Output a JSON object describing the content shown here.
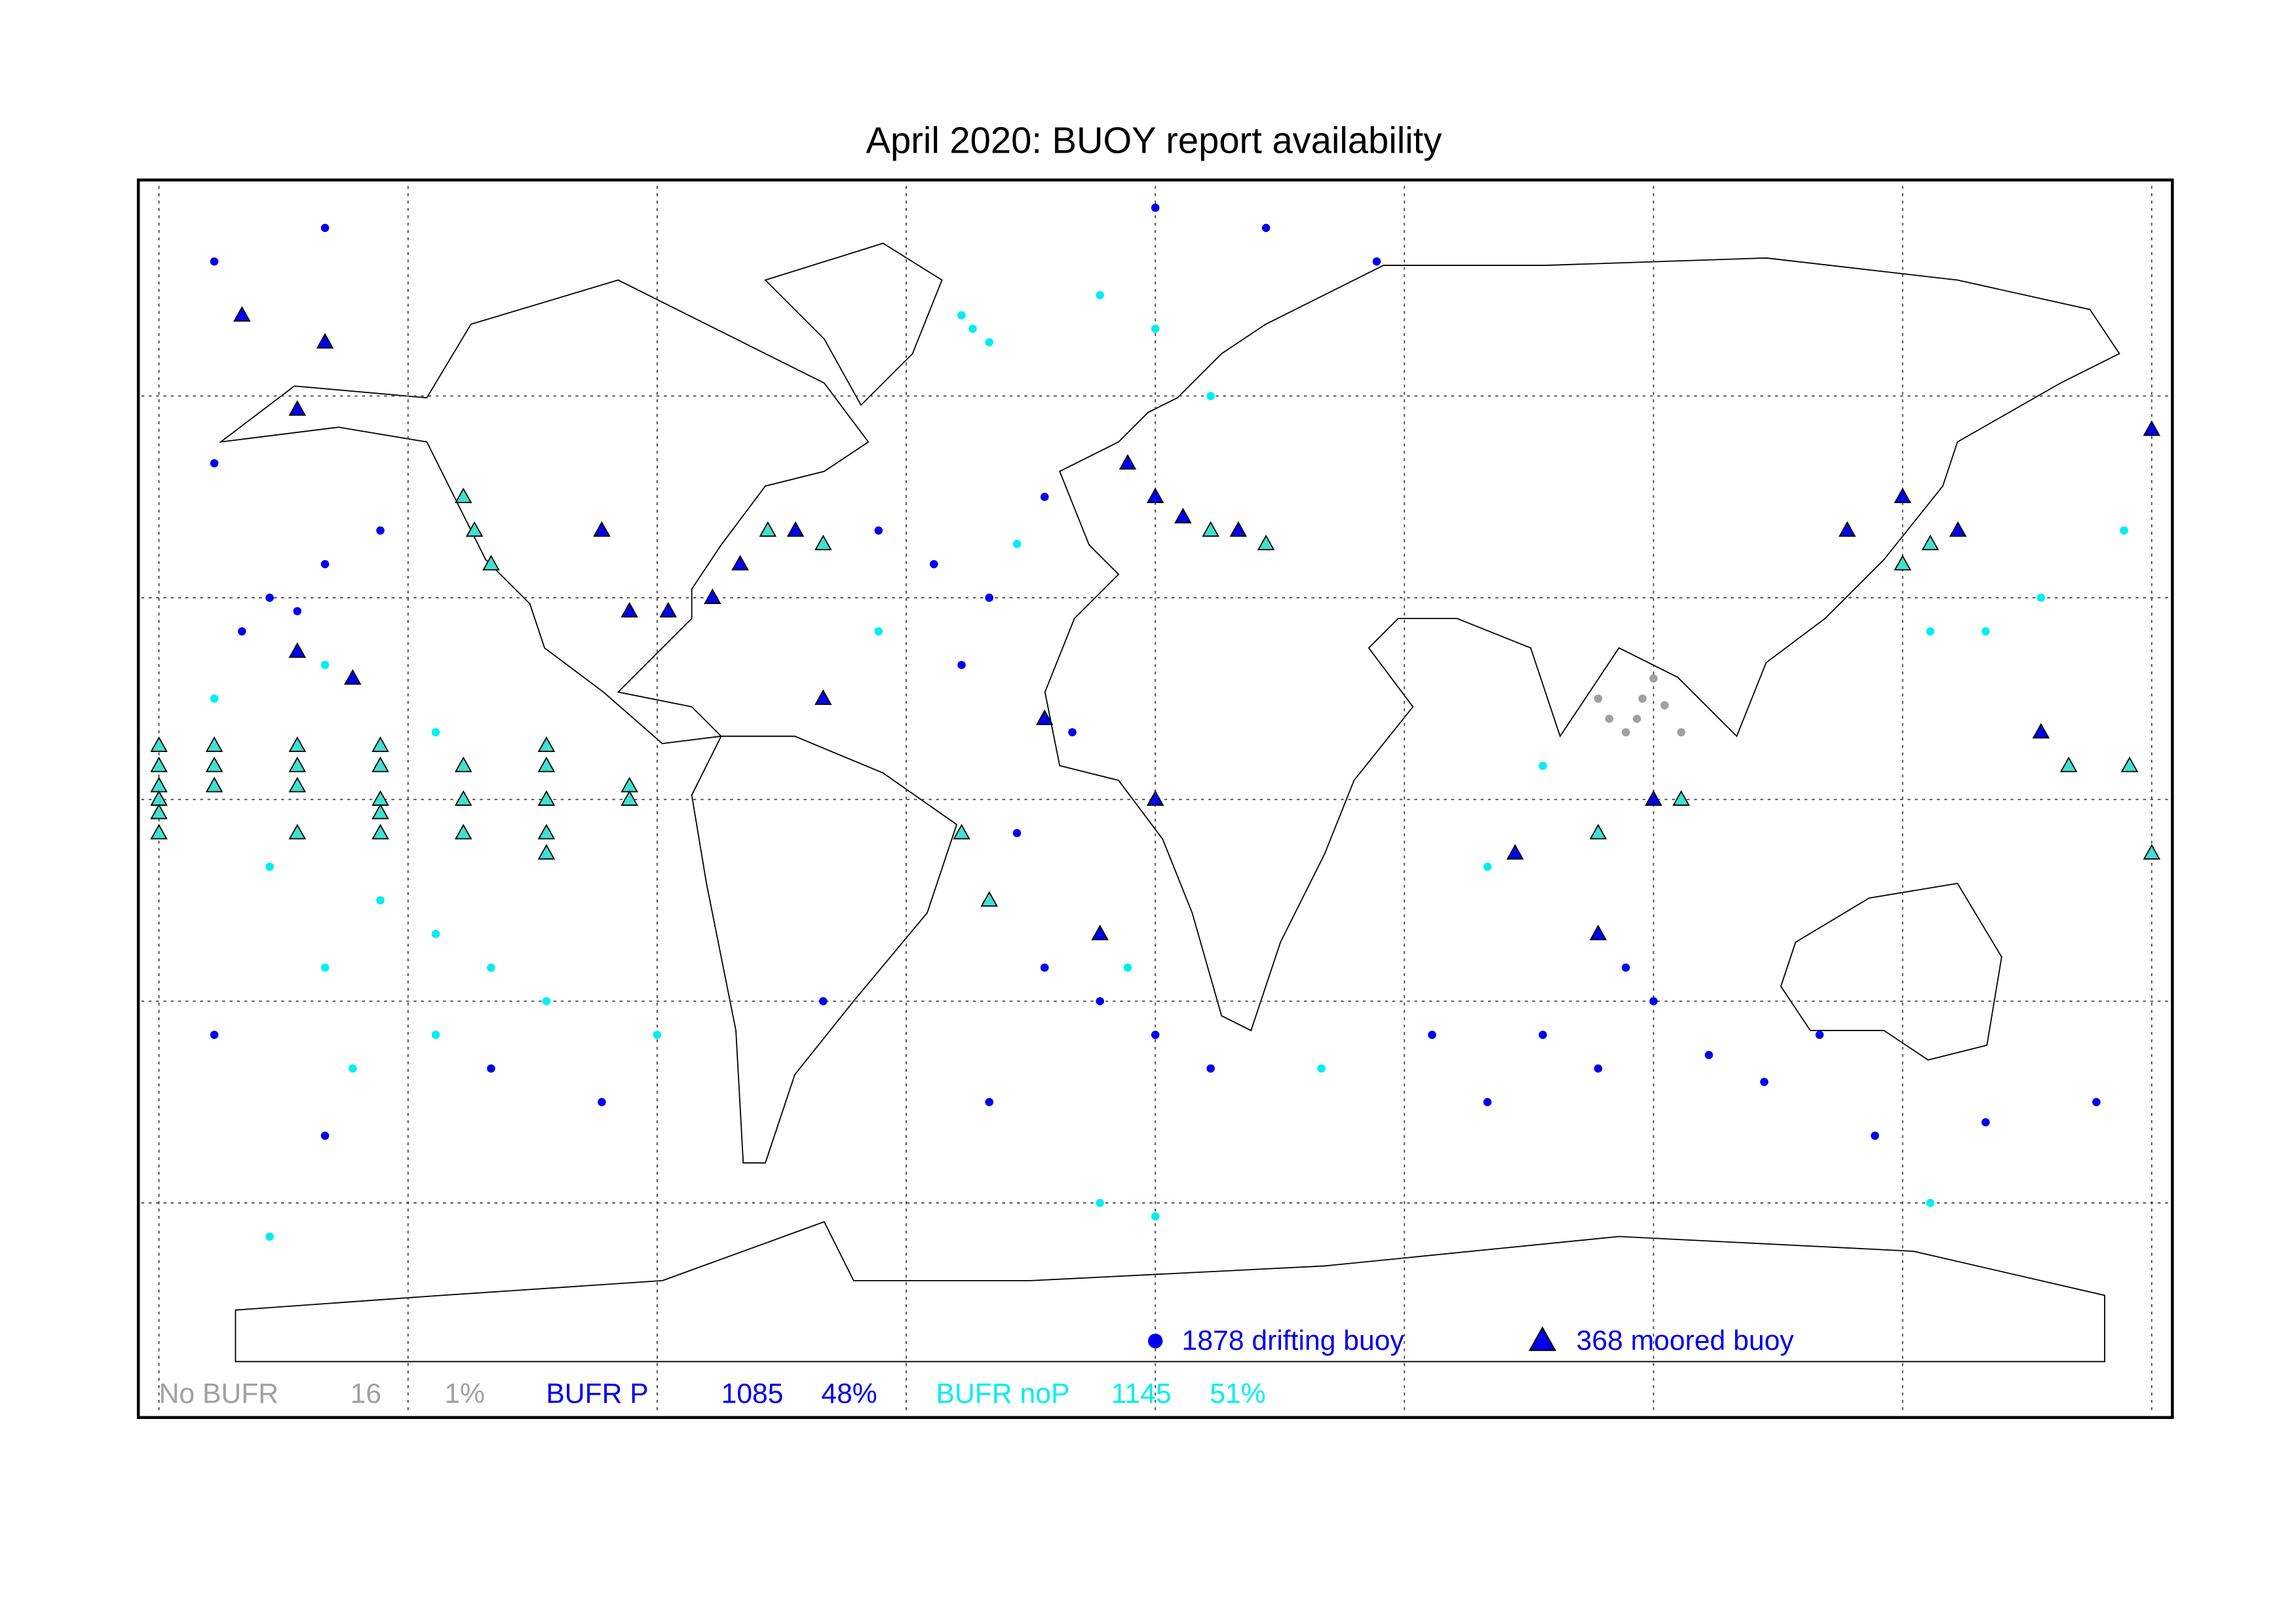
{
  "map": {
    "title": "April 2020: BUOY report availability",
    "lon_grid": [
      -180,
      -135,
      -90,
      -45,
      0,
      45,
      90,
      135,
      180
    ],
    "lat_grid": [
      -60,
      -30,
      0,
      30,
      60
    ],
    "series": [
      {
        "color": "#0000ee",
        "marker": "circle",
        "lon": [
          -160,
          -155,
          -150,
          -165,
          -140,
          -170,
          -40,
          -30,
          -50,
          -20,
          -35,
          -15,
          -20,
          -10,
          0,
          10,
          -30,
          70,
          80,
          90,
          100,
          60,
          110,
          50,
          85,
          -120,
          -100,
          -150,
          170,
          150,
          -170,
          -170,
          -150,
          20,
          40,
          0,
          -25,
          120,
          130,
          -60
        ],
        "lat": [
          30,
          28,
          35,
          25,
          40,
          50,
          35,
          30,
          40,
          45,
          20,
          10,
          -25,
          -30,
          -35,
          -40,
          -45,
          -35,
          -40,
          -30,
          -38,
          -45,
          -42,
          -35,
          -25,
          -40,
          -45,
          -50,
          -45,
          -48,
          -35,
          80,
          85,
          85,
          80,
          88,
          -5,
          -35,
          -50,
          -30
        ]
      },
      {
        "color": "#00eeee",
        "marker": "circle",
        "lon": [
          -140,
          -130,
          -150,
          -160,
          -120,
          -110,
          -90,
          -170,
          -150,
          -130,
          -10,
          -35,
          -33,
          -30,
          0,
          10,
          -50,
          -25,
          -5,
          30,
          60,
          70,
          150,
          160,
          175,
          140,
          -10,
          0,
          -160,
          140,
          -130,
          -145
        ],
        "lat": [
          -15,
          -20,
          -25,
          -10,
          -25,
          -30,
          -35,
          15,
          20,
          10,
          75,
          72,
          70,
          68,
          70,
          60,
          25,
          38,
          -25,
          -40,
          -10,
          5,
          25,
          30,
          40,
          -60,
          -60,
          -62,
          -65,
          25,
          -35,
          -40
        ]
      },
      {
        "color": "#a0a0a0",
        "marker": "circle",
        "lon": [
          80,
          82,
          85,
          88,
          92,
          95,
          87,
          90
        ],
        "lat": [
          15,
          12,
          10,
          15,
          14,
          10,
          12,
          18
        ]
      },
      {
        "color": "#0000ee",
        "marker": "triangle",
        "lon": [
          -165,
          -150,
          -155,
          -95,
          -88,
          -80,
          -75,
          -65,
          -60,
          -5,
          0,
          5,
          15,
          -145,
          -155,
          0,
          -20,
          65,
          80,
          90,
          135,
          145,
          125,
          180,
          160,
          -10,
          -100
        ],
        "lat": [
          72,
          68,
          58,
          28,
          28,
          30,
          35,
          40,
          15,
          50,
          45,
          42,
          40,
          18,
          22,
          0,
          12,
          -8,
          -20,
          0,
          45,
          40,
          40,
          55,
          10,
          -20,
          40
        ]
      },
      {
        "color": "#40e0d0",
        "marker": "triangle",
        "lon": [
          -180,
          -180,
          -180,
          -180,
          -180,
          -180,
          -170,
          -170,
          -170,
          -155,
          -155,
          -155,
          -155,
          -140,
          -140,
          -140,
          -140,
          -140,
          -125,
          -125,
          -125,
          -110,
          -110,
          -110,
          -110,
          -110,
          -95,
          -95,
          -125,
          -123,
          -120,
          -70,
          -60,
          10,
          20,
          135,
          140,
          95,
          80,
          -35,
          -30,
          165,
          176,
          180
        ],
        "lat": [
          8,
          5,
          2,
          0,
          -2,
          -5,
          8,
          5,
          2,
          8,
          5,
          2,
          -5,
          8,
          5,
          0,
          -2,
          -5,
          5,
          0,
          -5,
          8,
          5,
          0,
          -5,
          -8,
          2,
          0,
          45,
          40,
          35,
          40,
          38,
          40,
          38,
          35,
          38,
          0,
          -5,
          -5,
          -15,
          5,
          5,
          -8
        ]
      }
    ],
    "legend": [
      {
        "label": "1878 drifting buoy",
        "marker": "circle",
        "color": "#0000ee"
      },
      {
        "label": "368 moored buoy",
        "marker": "triangle",
        "color": "#0000ee"
      }
    ],
    "stats": [
      {
        "label": "No BUFR",
        "count": 16,
        "percent": "1%",
        "color": "#a0a0a0"
      },
      {
        "label": "BUFR P",
        "count": 1085,
        "percent": "48%",
        "color": "#0000ee"
      },
      {
        "label": "BUFR noP",
        "count": 1145,
        "percent": "51%",
        "color": "#00eeee"
      }
    ]
  }
}
